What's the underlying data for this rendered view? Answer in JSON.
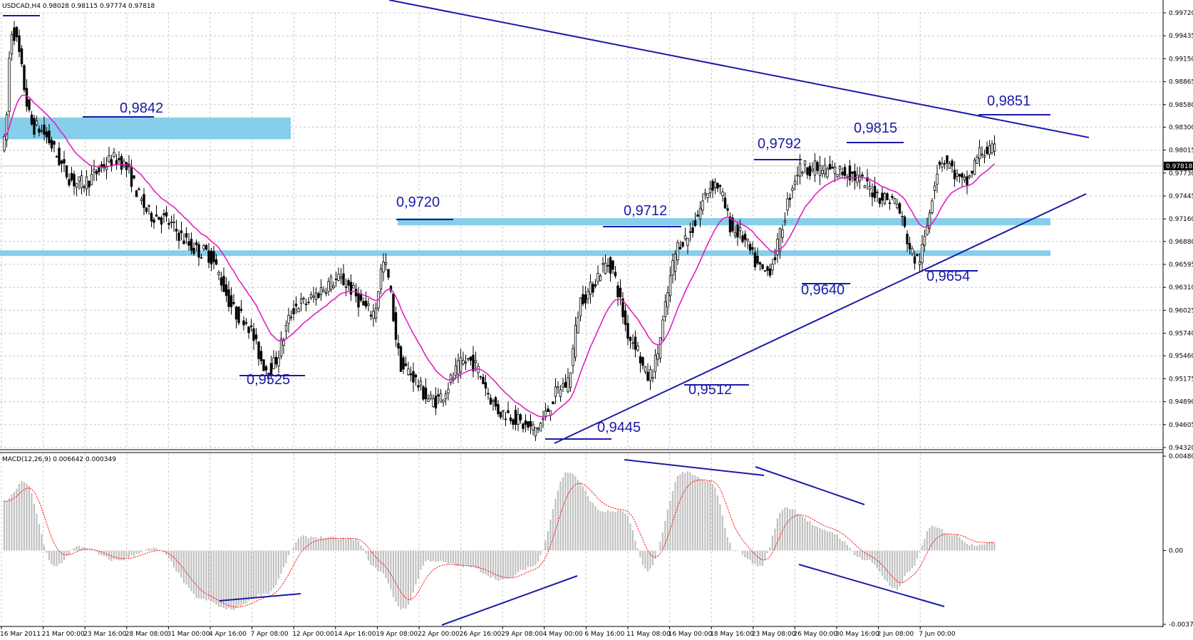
{
  "header": {
    "symbol_info": "USDCAD,H4  0.98028 0.98115 0.97774 0.97818",
    "macd_info": "MACD(12,26,9) 0.006642 0.000349"
  },
  "colors": {
    "candle": "#000000",
    "ma": "#e020c0",
    "trendline": "#1a1aa8",
    "zone": "#87ceeb",
    "histogram": "#c0c0c0",
    "signal": "#ff0000",
    "grid": "#c8c8c8"
  },
  "chart_data": [
    {
      "type": "candlestick",
      "name": "price-panel",
      "ylim": [
        0.9432,
        0.9972
      ],
      "y_ticks": [
        "0.99720",
        "0.99435",
        "0.99150",
        "0.98865",
        "0.98580",
        "0.98300",
        "0.98015",
        "0.97730",
        "0.97445",
        "0.97160",
        "0.96880",
        "0.96595",
        "0.96310",
        "0.96025",
        "0.95740",
        "0.95460",
        "0.95175",
        "0.94890",
        "0.94605",
        "0.94320"
      ],
      "current_price": "0.97818",
      "x_ticks": [
        "16 Mar 2011",
        "21 Mar 00:00",
        "23 Mar 16:00",
        "28 Mar 08:00",
        "31 Mar 00:00",
        "4 Apr 16:00",
        "7 Apr 08:00",
        "12 Apr 00:00",
        "14 Apr 16:00",
        "19 Apr 08:00",
        "22 Apr 00:00",
        "26 Apr 16:00",
        "29 Apr 08:00",
        "4 May 00:00",
        "6 May 16:00",
        "11 May 08:00",
        "16 May 00:00",
        "18 May 16:00",
        "23 May 08:00",
        "26 May 00:00",
        "30 May 16:00",
        "2 Jun 08:00",
        "7 Jun 00:00"
      ],
      "anchors": [
        [
          0,
          0.981
        ],
        [
          3,
          0.995
        ],
        [
          12,
          0.983
        ],
        [
          30,
          0.976
        ],
        [
          45,
          0.979
        ],
        [
          60,
          0.972
        ],
        [
          80,
          0.9675
        ],
        [
          95,
          0.9595
        ],
        [
          106,
          0.953
        ],
        [
          118,
          0.961
        ],
        [
          134,
          0.964
        ],
        [
          148,
          0.96
        ],
        [
          152,
          0.966
        ],
        [
          160,
          0.953
        ],
        [
          172,
          0.949
        ],
        [
          186,
          0.954
        ],
        [
          200,
          0.9475
        ],
        [
          212,
          0.9455
        ],
        [
          225,
          0.951
        ],
        [
          232,
          0.962
        ],
        [
          242,
          0.966
        ],
        [
          252,
          0.9565
        ],
        [
          258,
          0.952
        ],
        [
          272,
          0.969
        ],
        [
          285,
          0.976
        ],
        [
          293,
          0.97
        ],
        [
          305,
          0.965
        ],
        [
          320,
          0.978
        ],
        [
          335,
          0.9775
        ],
        [
          356,
          0.974
        ],
        [
          366,
          0.9665
        ],
        [
          376,
          0.979
        ],
        [
          385,
          0.976
        ],
        [
          392,
          0.98
        ]
      ],
      "zones": [
        {
          "from": 0.9815,
          "to": 0.9842
        },
        {
          "from": 0.9708,
          "to": 0.9717
        },
        {
          "from": 0.967,
          "to": 0.9677
        }
      ],
      "annotations": [
        "0,9842",
        "0,9720",
        "0,9712",
        "0,9792",
        "0,9815",
        "0,9851",
        "0,9525",
        "0,9445",
        "0,9512",
        "0,9640",
        "0,9654"
      ]
    },
    {
      "type": "histogram",
      "name": "macd-panel",
      "ylim": [
        -0.00375,
        0.004803
      ],
      "y_ticks": [
        "0.004803",
        "0.00",
        "-0.00375"
      ],
      "macd_anchors": [
        [
          0,
          0.0025
        ],
        [
          8,
          0.0035
        ],
        [
          20,
          -0.0008
        ],
        [
          30,
          0.0002
        ],
        [
          45,
          -0.0005
        ],
        [
          60,
          0.0001
        ],
        [
          80,
          -0.0025
        ],
        [
          90,
          -0.003
        ],
        [
          105,
          -0.0022
        ],
        [
          120,
          0.0007
        ],
        [
          140,
          0.0006
        ],
        [
          150,
          -0.001
        ],
        [
          160,
          -0.003
        ],
        [
          170,
          -0.0005
        ],
        [
          185,
          -0.0008
        ],
        [
          200,
          -0.0015
        ],
        [
          212,
          -0.0008
        ],
        [
          226,
          0.004
        ],
        [
          240,
          0.002
        ],
        [
          248,
          0.002
        ],
        [
          258,
          -0.001
        ],
        [
          272,
          0.004
        ],
        [
          283,
          0.0035
        ],
        [
          293,
          0.0
        ],
        [
          303,
          -0.0008
        ],
        [
          313,
          0.0022
        ],
        [
          330,
          0.001
        ],
        [
          346,
          -0.0005
        ],
        [
          358,
          -0.002
        ],
        [
          363,
          -0.001
        ],
        [
          372,
          0.0012
        ],
        [
          381,
          0.0008
        ],
        [
          388,
          0.0003
        ],
        [
          396,
          0.0004
        ]
      ]
    }
  ]
}
